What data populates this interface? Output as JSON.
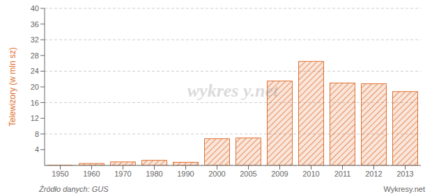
{
  "chart_data": {
    "type": "bar",
    "categories": [
      "1950",
      "1960",
      "1970",
      "1980",
      "1990",
      "2000",
      "2005",
      "2009",
      "2010",
      "2011",
      "2012",
      "2013"
    ],
    "values": [
      0.05,
      0.5,
      0.9,
      1.3,
      0.8,
      6.8,
      7.0,
      21.5,
      26.5,
      21.0,
      20.8,
      18.8
    ],
    "ylabel": "Telewizory (w mln sz)",
    "color": "#e07030",
    "ylim": [
      0,
      40
    ],
    "yticks": [
      4,
      8,
      12,
      16,
      20,
      24,
      28,
      32,
      36,
      40
    ],
    "grid": true,
    "annotations": [
      "wykres y.net",
      "Źródło danych:  GUS",
      "Wykresy.net"
    ]
  }
}
